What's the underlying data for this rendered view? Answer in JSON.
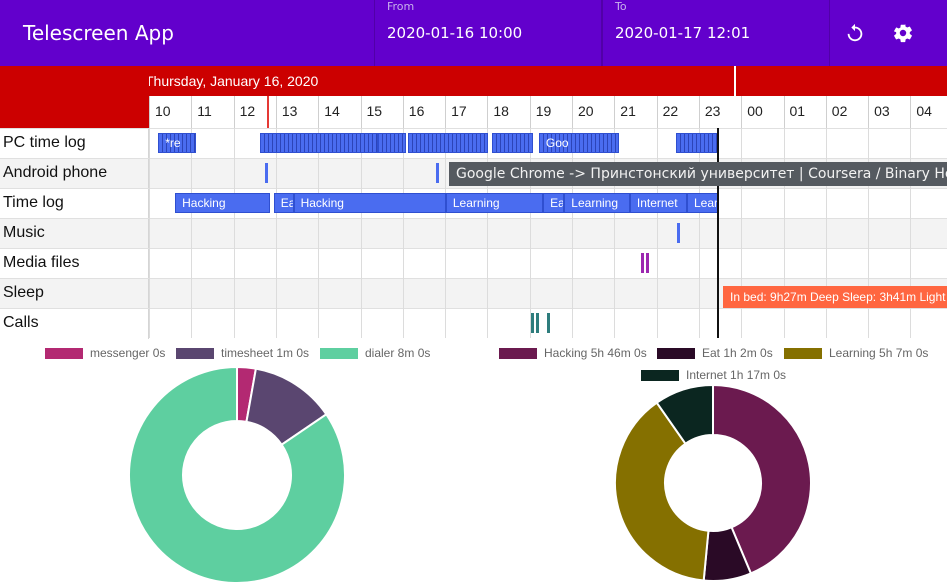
{
  "app": {
    "title": "Telescreen App",
    "from_label": "From",
    "from_value": "2020-01-16 10:00",
    "to_label": "To",
    "to_value": "2020-01-17 12:01",
    "refresh_icon": "refresh-icon",
    "settings_icon": "gear-icon"
  },
  "timeline": {
    "date_header": "Thursday, January 16, 2020",
    "hours": [
      "10",
      "11",
      "12",
      "13",
      "14",
      "15",
      "16",
      "17",
      "18",
      "19",
      "20",
      "21",
      "22",
      "23",
      "00",
      "01",
      "02",
      "03",
      "04"
    ],
    "rows": [
      "PC time log",
      "Android phone",
      "Time log",
      "Music",
      "Media files",
      "Sleep",
      "Calls"
    ],
    "pc_events": [
      {
        "label": "*re",
        "start": 10.1,
        "end": 11.0,
        "striped": true
      },
      {
        "label": "",
        "start": 12.5,
        "end": 15.3,
        "striped": true
      },
      {
        "label": "",
        "start": 15.3,
        "end": 15.95,
        "striped": true
      },
      {
        "label": "",
        "start": 16.0,
        "end": 17.9,
        "striped": true
      },
      {
        "label": "",
        "start": 18.0,
        "end": 18.95,
        "striped": true
      },
      {
        "label": "Goo",
        "start": 19.1,
        "end": 21.0,
        "striped": true
      },
      {
        "label": "",
        "start": 22.35,
        "end": 23.35,
        "striped": true
      }
    ],
    "time_log_events": [
      {
        "label": "Hacking",
        "start": 10.5,
        "end": 12.75
      },
      {
        "label": "Eat",
        "start": 12.83,
        "end": 13.3
      },
      {
        "label": "Hacking",
        "start": 13.3,
        "end": 16.9
      },
      {
        "label": "Learning",
        "start": 16.9,
        "end": 19.2
      },
      {
        "label": "Ea",
        "start": 19.2,
        "end": 19.7
      },
      {
        "label": "Learning",
        "start": 19.7,
        "end": 21.25
      },
      {
        "label": "Internet",
        "start": 21.25,
        "end": 22.6
      },
      {
        "label": "Learni",
        "start": 22.6,
        "end": 23.35
      }
    ],
    "tooltip": "Google Chrome -> Принстонский университет | Coursera / Binary Heaps",
    "sleep_label": "In bed: 9h27m Deep Sleep: 3h41m Light",
    "colors": {
      "header_red": "#cc0000",
      "event_blue": "#4a6cf0",
      "media_purple": "#9c27b0",
      "calls_teal": "#2e7d7d",
      "sleep_orange": "#ff6640"
    }
  },
  "chart_data": [
    {
      "type": "pie",
      "categories": [
        "messenger 0s",
        "timesheet 1m 0s",
        "dialer 8m 0s"
      ],
      "values": [
        2.8,
        12.7,
        84.5
      ],
      "colors": [
        "#b32972",
        "#5a4670",
        "#5ecfa0"
      ]
    },
    {
      "type": "pie",
      "categories": [
        "Hacking 5h 46m 0s",
        "Eat 1h 2m 0s",
        "Learning 5h 7m 0s",
        "Internet 1h 17m 0s"
      ],
      "values": [
        346,
        62,
        307,
        77
      ],
      "colors": [
        "#6b1a4f",
        "#2a0a26",
        "#857000",
        "#0b2620"
      ]
    }
  ]
}
